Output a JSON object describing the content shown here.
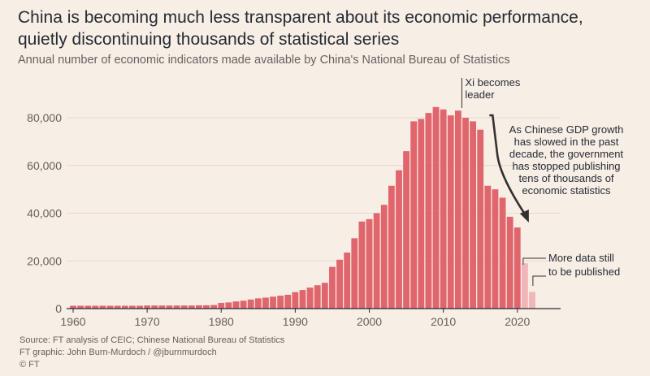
{
  "header": {
    "title_line1": "China is becoming much less transparent about its economic performance,",
    "title_line2": "quietly discontinuing thousands of statistical series",
    "subtitle": "Annual number of economic indicators made available by China's National Bureau of Statistics"
  },
  "footer": {
    "source": "Source: FT analysis of CEIC; Chinese National Bureau of Statistics",
    "credit": "FT graphic: John Burn-Murdoch / @jburnmurdoch",
    "copyright": "© FT"
  },
  "colors": {
    "bar": "#e1656d",
    "bar_faded": "#f2b6b8",
    "grid": "#e3d8cd",
    "axis": "#262a33",
    "arrow": "#33302e"
  },
  "chart_data": {
    "type": "bar",
    "title": "China is becoming much less transparent about its economic performance, quietly discontinuing thousands of statistical series",
    "subtitle": "Annual number of economic indicators made available by China's National Bureau of Statistics",
    "xlabel": "",
    "ylabel": "",
    "x_ticks": [
      1960,
      1970,
      1980,
      1990,
      2000,
      2010,
      2020
    ],
    "y_ticks": [
      0,
      20000,
      40000,
      60000,
      80000
    ],
    "y_tick_labels": [
      "0",
      "20,000",
      "40,000",
      "60,000",
      "80,000"
    ],
    "xlim": [
      1960,
      2022
    ],
    "ylim": [
      0,
      86000
    ],
    "grid": true,
    "categories": [
      1960,
      1961,
      1962,
      1963,
      1964,
      1965,
      1966,
      1967,
      1968,
      1969,
      1970,
      1971,
      1972,
      1973,
      1974,
      1975,
      1976,
      1977,
      1978,
      1979,
      1980,
      1981,
      1982,
      1983,
      1984,
      1985,
      1986,
      1987,
      1988,
      1989,
      1990,
      1991,
      1992,
      1993,
      1994,
      1995,
      1996,
      1997,
      1998,
      1999,
      2000,
      2001,
      2002,
      2003,
      2004,
      2005,
      2006,
      2007,
      2008,
      2009,
      2010,
      2011,
      2012,
      2013,
      2014,
      2015,
      2016,
      2017,
      2018,
      2019,
      2020,
      2021,
      2022
    ],
    "values": [
      1200,
      1200,
      1200,
      1200,
      1200,
      1200,
      1200,
      1200,
      1200,
      1200,
      1300,
      1300,
      1300,
      1300,
      1300,
      1300,
      1300,
      1400,
      1400,
      1500,
      2400,
      2600,
      3000,
      3300,
      3800,
      4300,
      4600,
      5000,
      5400,
      5800,
      6900,
      7800,
      8800,
      9800,
      10800,
      17500,
      20500,
      23500,
      29500,
      36500,
      37500,
      40000,
      43500,
      51500,
      58000,
      66000,
      78500,
      79500,
      82000,
      84500,
      83500,
      81000,
      83000,
      80000,
      78500,
      75000,
      51500,
      50000,
      46500,
      38500,
      34000,
      19000,
      7000
    ],
    "faded_from_year": 2021,
    "annotations": [
      {
        "text_lines": [
          "Xi becomes",
          "leader"
        ],
        "x": 2012.5
      },
      {
        "text_lines": [
          "As Chinese GDP growth",
          "has slowed in the past",
          "decade, the government",
          "has stopped publishing",
          "tens of thousands of",
          "economic statistics"
        ],
        "arrow_from": 2016,
        "arrow_to": 2021
      },
      {
        "text_lines": [
          "More data still",
          "to be published"
        ],
        "x": 2021
      }
    ]
  }
}
